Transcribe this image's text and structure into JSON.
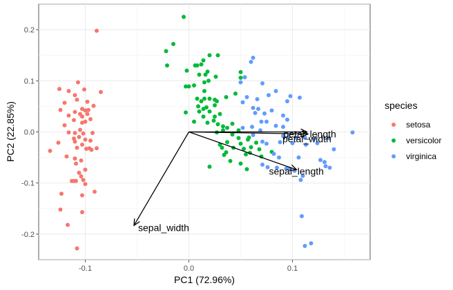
{
  "chart_data": {
    "type": "scatter",
    "title": "",
    "xlabel": "PC1 (72.96%)",
    "ylabel": "PC2 (22.85%)",
    "xlim": [
      -0.145,
      0.175
    ],
    "ylim": [
      -0.25,
      0.25
    ],
    "x_ticks": [
      -0.1,
      0.0,
      0.1
    ],
    "x_tick_labels": [
      "-0.1",
      "0.0",
      "0.1"
    ],
    "y_ticks": [
      -0.2,
      -0.1,
      0.0,
      0.1,
      0.2
    ],
    "y_tick_labels": [
      "-0.2",
      "-0.1",
      "0.0",
      "0.1",
      "0.2"
    ],
    "grid": true,
    "legend": {
      "title": "species",
      "position": "right"
    },
    "series": [
      {
        "name": "setosa",
        "color": "#F8766D",
        "points": [
          [
            -0.089,
            0.198
          ],
          [
            -0.107,
            0.097
          ],
          [
            -0.101,
            0.083
          ],
          [
            -0.085,
            0.078
          ],
          [
            -0.125,
            0.084
          ],
          [
            -0.116,
            0.08
          ],
          [
            -0.11,
            0.072
          ],
          [
            -0.108,
            0.063
          ],
          [
            -0.12,
            0.057
          ],
          [
            -0.098,
            0.059
          ],
          [
            -0.092,
            0.051
          ],
          [
            -0.103,
            0.045
          ],
          [
            -0.1,
            0.042
          ],
          [
            -0.097,
            0.043
          ],
          [
            -0.124,
            0.043
          ],
          [
            -0.11,
            0.039
          ],
          [
            -0.105,
            0.035
          ],
          [
            -0.098,
            0.035
          ],
          [
            -0.116,
            0.032
          ],
          [
            -0.103,
            0.03
          ],
          [
            -0.095,
            0.025
          ],
          [
            -0.111,
            0.023
          ],
          [
            -0.1,
            0.02
          ],
          [
            -0.103,
            0.018
          ],
          [
            -0.12,
            0.013
          ],
          [
            -0.105,
            0.004
          ],
          [
            -0.116,
            -0.001
          ],
          [
            -0.11,
            -0.002
          ],
          [
            -0.102,
            -0.003
          ],
          [
            -0.093,
            -0.002
          ],
          [
            -0.106,
            -0.01
          ],
          [
            -0.111,
            -0.013
          ],
          [
            -0.1,
            -0.015
          ],
          [
            -0.095,
            -0.017
          ],
          [
            -0.11,
            -0.019
          ],
          [
            -0.126,
            -0.021
          ],
          [
            -0.103,
            -0.025
          ],
          [
            -0.108,
            -0.031
          ],
          [
            -0.096,
            -0.032
          ],
          [
            -0.089,
            -0.032
          ],
          [
            -0.099,
            -0.033
          ],
          [
            -0.094,
            -0.035
          ],
          [
            -0.134,
            -0.037
          ],
          [
            -0.118,
            -0.048
          ],
          [
            -0.11,
            -0.052
          ],
          [
            -0.104,
            -0.056
          ],
          [
            -0.109,
            -0.062
          ],
          [
            -0.1,
            -0.074
          ],
          [
            -0.106,
            -0.08
          ],
          [
            -0.104,
            -0.087
          ],
          [
            -0.102,
            -0.094
          ],
          [
            -0.109,
            -0.096
          ],
          [
            -0.111,
            -0.096
          ],
          [
            -0.113,
            -0.096
          ],
          [
            -0.1,
            -0.102
          ],
          [
            -0.091,
            -0.117
          ],
          [
            -0.123,
            -0.121
          ],
          [
            -0.103,
            -0.124
          ],
          [
            -0.124,
            -0.152
          ],
          [
            -0.103,
            -0.157
          ],
          [
            -0.117,
            -0.182
          ],
          [
            -0.108,
            -0.228
          ]
        ]
      },
      {
        "name": "versicolor",
        "color": "#00BA38",
        "points": [
          [
            -0.005,
            0.225
          ],
          [
            -0.022,
            0.158
          ],
          [
            -0.015,
            0.172
          ],
          [
            -0.021,
            0.13
          ],
          [
            -0.002,
            0.12
          ],
          [
            0.014,
            0.14
          ],
          [
            0.006,
            0.13
          ],
          [
            0.02,
            0.15
          ],
          [
            0.028,
            0.15
          ],
          [
            0.012,
            0.132
          ],
          [
            0.008,
            0.13
          ],
          [
            0.018,
            0.118
          ],
          [
            0.016,
            0.112
          ],
          [
            0.05,
            0.117
          ],
          [
            0.05,
            0.106
          ],
          [
            0.026,
            0.108
          ],
          [
            0.01,
            0.112
          ],
          [
            0.019,
            0.1
          ],
          [
            0.015,
            0.097
          ],
          [
            0.005,
            0.091
          ],
          [
            -0.003,
            0.089
          ],
          [
            0.0,
            0.089
          ],
          [
            0.015,
            0.08
          ],
          [
            0.02,
            0.065
          ],
          [
            0.025,
            0.063
          ],
          [
            0.036,
            0.068
          ],
          [
            0.027,
            0.06
          ],
          [
            0.015,
            0.065
          ],
          [
            0.012,
            0.06
          ],
          [
            0.008,
            0.065
          ],
          [
            0.045,
            0.075
          ],
          [
            0.025,
            0.052
          ],
          [
            0.017,
            0.048
          ],
          [
            0.014,
            0.045
          ],
          [
            0.009,
            0.05
          ],
          [
            0.01,
            0.04
          ],
          [
            0.02,
            0.04
          ],
          [
            0.03,
            0.035
          ],
          [
            0.025,
            0.03
          ],
          [
            0.014,
            0.03
          ],
          [
            0.005,
            0.02
          ],
          [
            0.024,
            0.022
          ],
          [
            0.018,
            0.018
          ],
          [
            0.028,
            0.015
          ],
          [
            0.042,
            0.016
          ],
          [
            -0.003,
            0.038
          ],
          [
            0.033,
            0.011
          ],
          [
            0.037,
            0.008
          ],
          [
            0.033,
            0.003
          ],
          [
            0.048,
            0.003
          ],
          [
            0.042,
            -0.005
          ],
          [
            0.027,
            -0.001
          ],
          [
            0.058,
            -0.011
          ],
          [
            0.048,
            -0.012
          ],
          [
            0.037,
            -0.02
          ],
          [
            0.05,
            -0.023
          ],
          [
            0.065,
            -0.021
          ],
          [
            0.057,
            -0.015
          ],
          [
            0.032,
            -0.031
          ],
          [
            0.043,
            -0.031
          ],
          [
            0.053,
            -0.033
          ],
          [
            0.06,
            -0.03
          ],
          [
            0.068,
            -0.034
          ],
          [
            0.036,
            -0.04
          ],
          [
            0.055,
            -0.044
          ],
          [
            0.07,
            -0.048
          ],
          [
            0.08,
            -0.039
          ],
          [
            0.034,
            -0.045
          ],
          [
            0.04,
            -0.057
          ],
          [
            0.05,
            -0.062
          ],
          [
            0.02,
            -0.068
          ],
          [
            0.056,
            -0.073
          ],
          [
            0.03,
            -0.025
          ],
          [
            0.059,
            -0.041
          ]
        ]
      },
      {
        "name": "virginica",
        "color": "#619CFF",
        "points": [
          [
            0.062,
            0.145
          ],
          [
            0.06,
            0.137
          ],
          [
            0.054,
            0.107
          ],
          [
            0.05,
            0.097
          ],
          [
            0.071,
            0.095
          ],
          [
            0.084,
            0.08
          ],
          [
            0.098,
            0.07
          ],
          [
            0.095,
            0.06
          ],
          [
            0.107,
            0.067
          ],
          [
            0.077,
            0.072
          ],
          [
            0.066,
            0.064
          ],
          [
            0.056,
            0.068
          ],
          [
            0.052,
            0.058
          ],
          [
            0.067,
            0.045
          ],
          [
            0.062,
            0.047
          ],
          [
            0.08,
            0.042
          ],
          [
            0.091,
            0.032
          ],
          [
            0.073,
            0.036
          ],
          [
            0.064,
            0.037
          ],
          [
            0.07,
            0.02
          ],
          [
            0.075,
            0.02
          ],
          [
            0.095,
            0.024
          ],
          [
            0.084,
            0.012
          ],
          [
            0.091,
            0.01
          ],
          [
            0.061,
            0.01
          ],
          [
            0.052,
            0.008
          ],
          [
            0.069,
            0.003
          ],
          [
            0.062,
            -0.006
          ],
          [
            0.091,
            -0.008
          ],
          [
            0.096,
            -0.01
          ],
          [
            0.104,
            -0.012
          ],
          [
            0.112,
            -0.011
          ],
          [
            0.121,
            -0.013
          ],
          [
            0.135,
            -0.012
          ],
          [
            0.158,
            -0.001
          ],
          [
            0.071,
            -0.019
          ],
          [
            0.075,
            -0.023
          ],
          [
            0.088,
            -0.02
          ],
          [
            0.1,
            -0.022
          ],
          [
            0.113,
            -0.025
          ],
          [
            0.124,
            -0.022
          ],
          [
            0.14,
            -0.034
          ],
          [
            0.082,
            -0.043
          ],
          [
            0.087,
            -0.05
          ],
          [
            0.106,
            -0.05
          ],
          [
            0.127,
            -0.055
          ],
          [
            0.131,
            -0.059
          ],
          [
            0.132,
            -0.067
          ],
          [
            0.136,
            -0.07
          ],
          [
            0.071,
            -0.064
          ],
          [
            0.076,
            -0.069
          ],
          [
            0.085,
            -0.07
          ],
          [
            0.094,
            -0.072
          ],
          [
            0.102,
            -0.076
          ],
          [
            0.11,
            -0.086
          ],
          [
            0.108,
            -0.094
          ],
          [
            0.097,
            -0.072
          ],
          [
            0.109,
            -0.165
          ],
          [
            0.118,
            -0.218
          ],
          [
            0.112,
            -0.223
          ]
        ]
      }
    ],
    "loadings": [
      {
        "name": "petal_length",
        "x": 0.114,
        "y": 0.0
      },
      {
        "name": "petal_width",
        "x": 0.115,
        "y": -0.004
      },
      {
        "name": "sepal_length",
        "x": 0.104,
        "y": -0.074
      },
      {
        "name": "sepal_width",
        "x": -0.053,
        "y": -0.183
      }
    ]
  }
}
